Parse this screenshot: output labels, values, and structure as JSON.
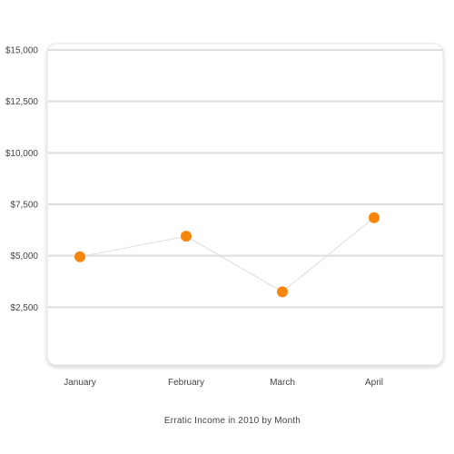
{
  "chart_data": {
    "type": "line",
    "caption": "Erratic Income in 2010 by Month",
    "categories": [
      "January",
      "February",
      "March",
      "April"
    ],
    "series": [
      {
        "values": [
          4950,
          5950,
          3250,
          6850
        ]
      }
    ],
    "ylim": [
      0,
      15000
    ],
    "yticks": [
      2500,
      5000,
      7500,
      10000,
      12500,
      15000
    ],
    "ytick_labels": [
      "$2,500",
      "$5,000",
      "$7,500",
      "$10,000",
      "$12,500",
      "$15,000"
    ],
    "grid": true,
    "colors": {
      "marker": "#f7860f",
      "line": "#dddddd",
      "grid": "#dedede",
      "panel_border": "#e6e6e6"
    }
  }
}
